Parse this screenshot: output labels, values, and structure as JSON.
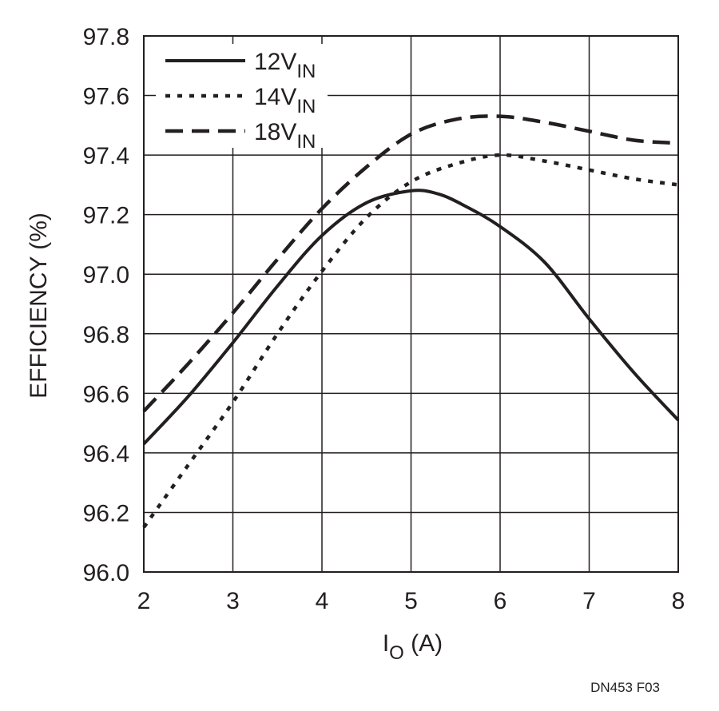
{
  "chart_data": {
    "type": "line",
    "xlabel": {
      "main": "I",
      "sub": "O",
      "unit": " (A)"
    },
    "ylabel": "EFFICIENCY (%)",
    "xlim": [
      2,
      8
    ],
    "ylim": [
      96.0,
      97.8
    ],
    "x_ticks": [
      "2",
      "3",
      "4",
      "5",
      "6",
      "7",
      "8"
    ],
    "y_ticks": [
      "96.0",
      "96.2",
      "96.4",
      "96.6",
      "96.8",
      "97.0",
      "97.2",
      "97.4",
      "97.6",
      "97.8"
    ],
    "grid": true,
    "legend_position": "top-left",
    "series": [
      {
        "name": "12V",
        "name_sub": "IN",
        "style": "solid",
        "x": [
          2,
          2.5,
          3,
          3.5,
          4,
          4.5,
          5,
          5.3,
          5.6,
          6,
          6.5,
          7,
          7.5,
          8
        ],
        "y": [
          96.43,
          96.59,
          96.77,
          96.96,
          97.13,
          97.24,
          97.28,
          97.27,
          97.23,
          97.16,
          97.04,
          96.85,
          96.67,
          96.51
        ]
      },
      {
        "name": "14V",
        "name_sub": "IN",
        "style": "dotted",
        "x": [
          2,
          2.5,
          3,
          3.5,
          4,
          4.5,
          5,
          5.5,
          6,
          6.5,
          7,
          7.5,
          8
        ],
        "y": [
          96.15,
          96.36,
          96.57,
          96.8,
          97.01,
          97.19,
          97.31,
          97.37,
          97.4,
          97.38,
          97.35,
          97.32,
          97.3
        ]
      },
      {
        "name": "18V",
        "name_sub": "IN",
        "style": "dashed",
        "x": [
          2,
          2.5,
          3,
          3.5,
          4,
          4.5,
          5,
          5.5,
          6,
          6.5,
          7,
          7.5,
          8
        ],
        "y": [
          96.54,
          96.7,
          96.87,
          97.05,
          97.22,
          97.36,
          97.47,
          97.52,
          97.53,
          97.51,
          97.48,
          97.45,
          97.44
        ]
      }
    ]
  },
  "footer": {
    "code": "DN453 F03"
  }
}
